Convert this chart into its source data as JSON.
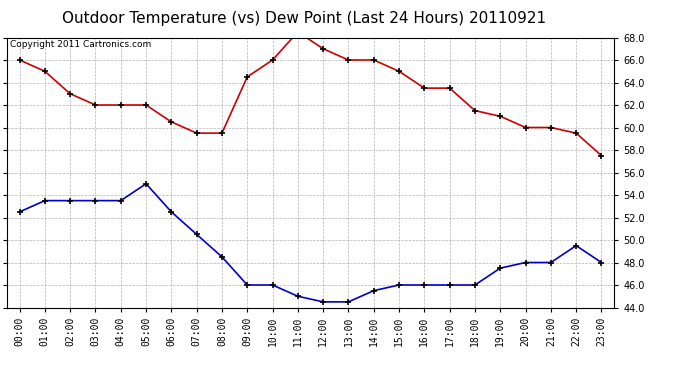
{
  "title": "Outdoor Temperature (vs) Dew Point (Last 24 Hours) 20110921",
  "copyright": "Copyright 2011 Cartronics.com",
  "hours": [
    "00:00",
    "01:00",
    "02:00",
    "03:00",
    "04:00",
    "05:00",
    "06:00",
    "07:00",
    "08:00",
    "09:00",
    "10:00",
    "11:00",
    "12:00",
    "13:00",
    "14:00",
    "15:00",
    "16:00",
    "17:00",
    "18:00",
    "19:00",
    "20:00",
    "21:00",
    "22:00",
    "23:00"
  ],
  "temp": [
    66.0,
    65.0,
    63.0,
    62.0,
    62.0,
    62.0,
    60.5,
    59.5,
    59.5,
    64.5,
    66.0,
    68.5,
    67.0,
    66.0,
    66.0,
    65.0,
    63.5,
    63.5,
    61.5,
    61.0,
    60.0,
    60.0,
    59.5,
    57.5
  ],
  "dew": [
    52.5,
    53.5,
    53.5,
    53.5,
    53.5,
    55.0,
    52.5,
    50.5,
    48.5,
    46.0,
    46.0,
    45.0,
    44.5,
    44.5,
    45.5,
    46.0,
    46.0,
    46.0,
    46.0,
    47.5,
    48.0,
    48.0,
    49.5,
    48.0
  ],
  "temp_color": "#cc0000",
  "dew_color": "#0000cc",
  "bg_color": "#ffffff",
  "grid_color": "#aaaaaa",
  "ylim_min": 44.0,
  "ylim_max": 68.0,
  "yticks": [
    44.0,
    46.0,
    48.0,
    50.0,
    52.0,
    54.0,
    56.0,
    58.0,
    60.0,
    62.0,
    64.0,
    66.0,
    68.0
  ],
  "title_fontsize": 11,
  "copyright_fontsize": 6.5,
  "tick_fontsize": 7
}
